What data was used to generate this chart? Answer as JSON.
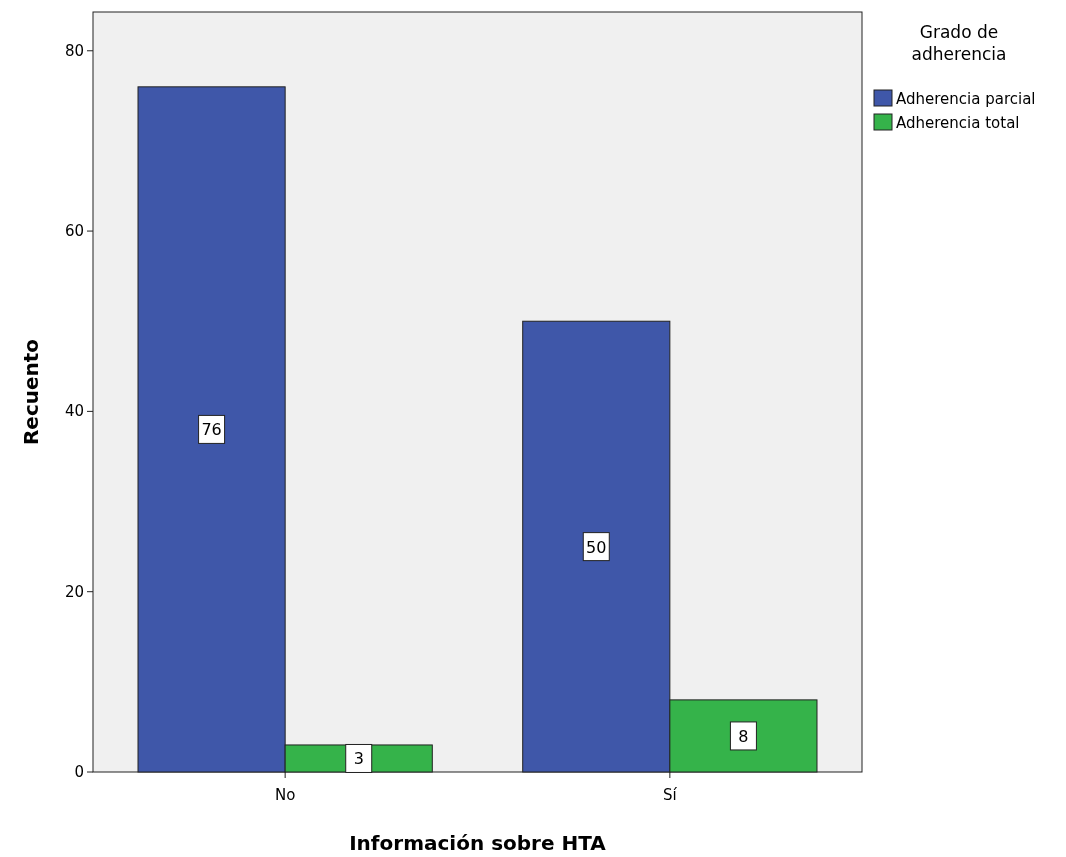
{
  "chart_data": {
    "type": "bar",
    "xlabel": "Información sobre HTA",
    "ylabel": "Recuento",
    "legend_title": "Grado de adherencia",
    "categories": [
      "No",
      "Sí"
    ],
    "series": [
      {
        "name": "Adherencia parcial",
        "color": "#3f57a9",
        "values": [
          76,
          50
        ]
      },
      {
        "name": "Adherencia total",
        "color": "#35b34a",
        "values": [
          3,
          8
        ]
      }
    ],
    "ylim": [
      0,
      84.3
    ],
    "yticks": [
      0,
      20,
      40,
      60,
      80
    ],
    "data_labels": true,
    "legend": "right",
    "grid": false
  }
}
